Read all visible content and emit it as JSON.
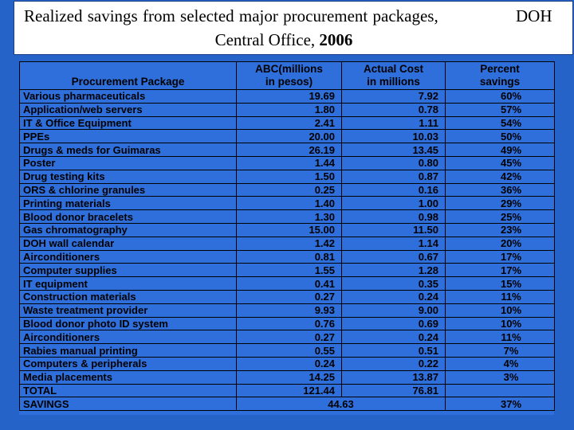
{
  "title": {
    "line1": "Realized savings  from selected major procurement packages,",
    "line1_right": "DOH",
    "line2_prefix": "Central Office, ",
    "line2_year": "2006"
  },
  "table": {
    "headers": {
      "package": "Procurement Package",
      "abc_line1": "ABC(millions",
      "abc_line2": "in pesos)",
      "actual_line1": "Actual Cost",
      "actual_line2": "in millions",
      "percent_line1": "Percent",
      "percent_line2": "savings"
    },
    "rows": [
      {
        "package": "Various pharmaceuticals",
        "abc": "19.69",
        "actual": "7.92",
        "percent": "60%"
      },
      {
        "package": "Application/web servers",
        "abc": "1.80",
        "actual": "0.78",
        "percent": "57%"
      },
      {
        "package": "IT & Office Equipment",
        "abc": "2.41",
        "actual": "1.11",
        "percent": "54%"
      },
      {
        "package": "PPEs",
        "abc": "20.00",
        "actual": "10.03",
        "percent": "50%"
      },
      {
        "package": "Drugs & meds for Guimaras",
        "abc": "26.19",
        "actual": "13.45",
        "percent": "49%"
      },
      {
        "package": "Poster",
        "abc": "1.44",
        "actual": "0.80",
        "percent": "45%"
      },
      {
        "package": "Drug testing kits",
        "abc": "1.50",
        "actual": "0.87",
        "percent": "42%"
      },
      {
        "package": "ORS &  chlorine granules",
        "abc": "0.25",
        "actual": "0.16",
        "percent": "36%"
      },
      {
        "package": "Printing materials",
        "abc": "1.40",
        "actual": "1.00",
        "percent": "29%"
      },
      {
        "package": "Blood donor bracelets",
        "abc": "1.30",
        "actual": "0.98",
        "percent": "25%"
      },
      {
        "package": "Gas chromatography",
        "abc": "15.00",
        "actual": "11.50",
        "percent": "23%"
      },
      {
        "package": "DOH wall calendar",
        "abc": "1.42",
        "actual": "1.14",
        "percent": "20%"
      },
      {
        "package": "Airconditioners",
        "abc": "0.81",
        "actual": "0.67",
        "percent": "17%"
      },
      {
        "package": "Computer supplies",
        "abc": "1.55",
        "actual": "1.28",
        "percent": "17%"
      },
      {
        "package": "IT equipment",
        "abc": "0.41",
        "actual": "0.35",
        "percent": "15%"
      },
      {
        "package": "Construction materials",
        "abc": "0.27",
        "actual": "0.24",
        "percent": "11%"
      },
      {
        "package": "Waste treatment provider",
        "abc": "9.93",
        "actual": "9.00",
        "percent": "10%"
      },
      {
        "package": "Blood donor photo ID system",
        "abc": "0.76",
        "actual": "0.69",
        "percent": "10%"
      },
      {
        "package": "Airconditioners",
        "abc": "0.27",
        "actual": "0.24",
        "percent": "11%"
      },
      {
        "package": "Rabies manual printing",
        "abc": "0.55",
        "actual": "0.51",
        "percent": "7%"
      },
      {
        "package": "Computers & peripherals",
        "abc": "0.24",
        "actual": "0.22",
        "percent": "4%"
      },
      {
        "package": "Media placements",
        "abc": "14.25",
        "actual": "13.87",
        "percent": "3%"
      },
      {
        "package": "TOTAL",
        "abc": "121.44",
        "actual": "76.81",
        "percent": ""
      }
    ],
    "savings": {
      "label": "SAVINGS",
      "value": "44.63",
      "percent": "37%"
    }
  }
}
